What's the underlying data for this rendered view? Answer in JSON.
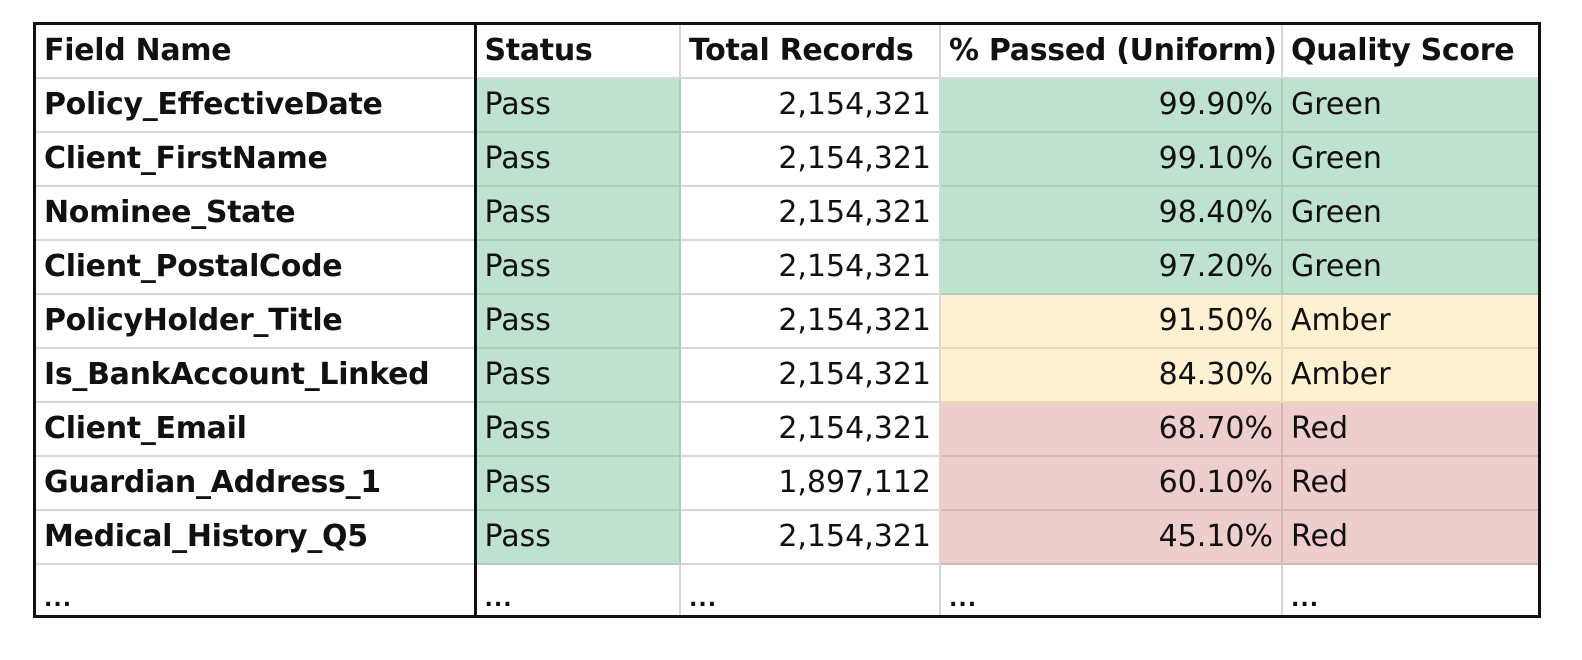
{
  "table": {
    "headers": [
      "Field Name",
      "Status",
      "Total Records",
      "% Passed (Uniform)",
      "Quality Score"
    ],
    "rows": [
      {
        "field": "Policy_EffectiveDate",
        "status": "Pass",
        "total": "2,154,321",
        "passed": "99.90%",
        "score": "Green"
      },
      {
        "field": "Client_FirstName",
        "status": "Pass",
        "total": "2,154,321",
        "passed": "99.10%",
        "score": "Green"
      },
      {
        "field": "Nominee_State",
        "status": "Pass",
        "total": "2,154,321",
        "passed": "98.40%",
        "score": "Green"
      },
      {
        "field": "Client_PostalCode",
        "status": "Pass",
        "total": "2,154,321",
        "passed": "97.20%",
        "score": "Green"
      },
      {
        "field": "PolicyHolder_Title",
        "status": "Pass",
        "total": "2,154,321",
        "passed": "91.50%",
        "score": "Amber"
      },
      {
        "field": "Is_BankAccount_Linked",
        "status": "Pass",
        "total": "2,154,321",
        "passed": "84.30%",
        "score": "Amber"
      },
      {
        "field": "Client_Email",
        "status": "Pass",
        "total": "2,154,321",
        "passed": "68.70%",
        "score": "Red"
      },
      {
        "field": "Guardian_Address_1",
        "status": "Pass",
        "total": "1,897,112",
        "passed": "60.10%",
        "score": "Red"
      },
      {
        "field": "Medical_History_Q5",
        "status": "Pass",
        "total": "2,154,321",
        "passed": "45.10%",
        "score": "Red"
      }
    ],
    "ellipsis_row": [
      "...",
      "...",
      "...",
      "...",
      "..."
    ]
  },
  "colors": {
    "Green": "#bfe1d0",
    "Amber": "#fdf1d1",
    "Red": "#eecdcd",
    "pass_status": "#bfe1d0"
  }
}
